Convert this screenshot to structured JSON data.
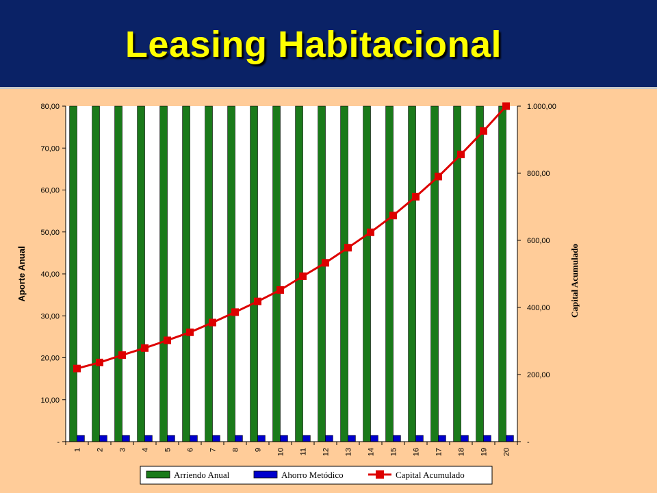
{
  "title": "Leasing Habitacional",
  "chart_data": {
    "type": "bar",
    "categories": [
      "1",
      "2",
      "3",
      "4",
      "5",
      "6",
      "7",
      "8",
      "9",
      "10",
      "11",
      "12",
      "13",
      "14",
      "15",
      "16",
      "17",
      "18",
      "19",
      "20"
    ],
    "series": [
      {
        "name": "Arriendo Anual",
        "type": "bar",
        "axis": "left",
        "color": "#1A7A1A",
        "values": [
          80,
          80,
          80,
          80,
          80,
          80,
          80,
          80,
          80,
          80,
          80,
          80,
          80,
          80,
          80,
          80,
          80,
          80,
          80,
          80
        ]
      },
      {
        "name": "Ahorro Metódico",
        "type": "bar",
        "axis": "left",
        "color": "#0000CC",
        "values": [
          1.5,
          1.5,
          1.5,
          1.5,
          1.5,
          1.5,
          1.5,
          1.5,
          1.5,
          1.5,
          1.5,
          1.5,
          1.5,
          1.5,
          1.5,
          1.5,
          1.5,
          1.5,
          1.5,
          1.5
        ]
      },
      {
        "name": "Capital Acumulado",
        "type": "line",
        "axis": "right",
        "color": "#DD0000",
        "values": [
          218,
          236,
          258,
          279,
          302,
          326,
          355,
          386,
          418,
          452,
          493,
          533,
          578,
          624,
          674,
          730,
          790,
          856,
          926,
          1000
        ]
      }
    ],
    "ylabel": "Aporte Anual",
    "ylabel_right": "Capital Acumulado",
    "ylim": [
      0,
      80
    ],
    "ylim_right": [
      0,
      1000
    ],
    "yticks": [
      "-",
      "10,00",
      "20,00",
      "30,00",
      "40,00",
      "50,00",
      "60,00",
      "70,00",
      "80,00"
    ],
    "yticks_right": [
      "-",
      "200,00",
      "400,00",
      "600,00",
      "800,00",
      "1.000,00"
    ],
    "grid": false,
    "legend_position": "bottom"
  }
}
